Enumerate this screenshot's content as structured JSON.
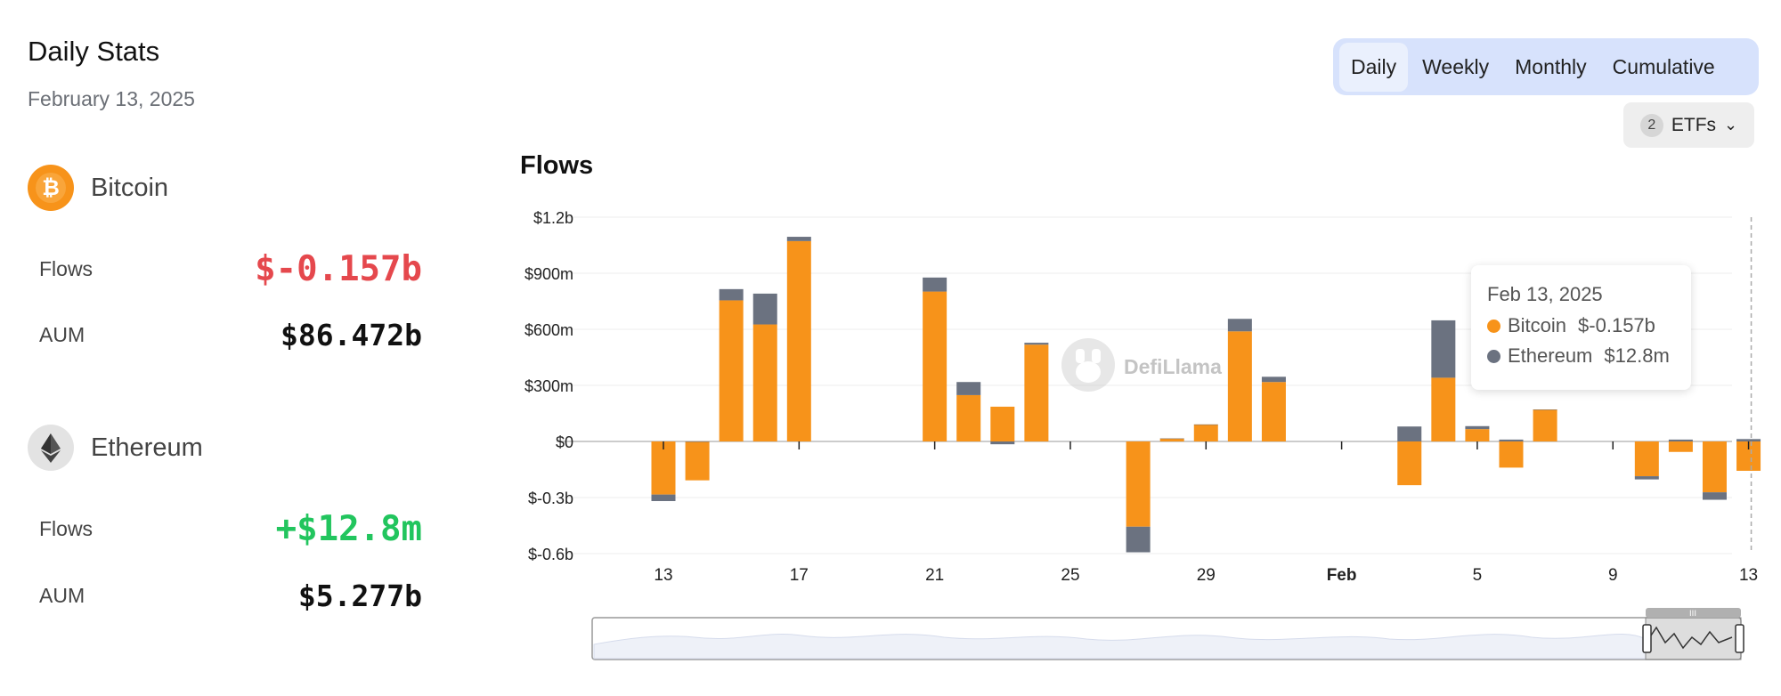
{
  "header": {
    "title": "Daily Stats",
    "date": "February 13, 2025"
  },
  "assets": [
    {
      "name": "Bitcoin",
      "icon": "bitcoin-icon",
      "color": "#f7931a",
      "flows_label": "Flows",
      "flows_value": "$-0.157b",
      "aum_label": "AUM",
      "aum_value": "$86.472b"
    },
    {
      "name": "Ethereum",
      "icon": "ethereum-icon",
      "color": "#e3e3e3",
      "flows_label": "Flows",
      "flows_value": "+$12.8m",
      "aum_label": "AUM",
      "aum_value": "$5.277b"
    }
  ],
  "tabs": [
    {
      "label": "Daily",
      "active": true
    },
    {
      "label": "Weekly",
      "active": false
    },
    {
      "label": "Monthly",
      "active": false
    },
    {
      "label": "Cumulative",
      "active": false
    }
  ],
  "etf_filter": {
    "count": "2",
    "label": "ETFs"
  },
  "watermark": "DefiLlama",
  "tooltip": {
    "date": "Feb 13, 2025",
    "rows": [
      {
        "name": "Bitcoin",
        "value": "$-0.157b",
        "color": "#f7931a"
      },
      {
        "name": "Ethereum",
        "value": "$12.8m",
        "color": "#6b7280"
      }
    ]
  },
  "chart_data": {
    "type": "bar",
    "title": "Flows",
    "stacked": true,
    "colors": {
      "Bitcoin": "#f7931a",
      "Ethereum": "#6b7280"
    },
    "ylim": [
      -0.6,
      1.2
    ],
    "y_ticks": [
      {
        "value": 1.2,
        "label": "$1.2b"
      },
      {
        "value": 0.9,
        "label": "$900m"
      },
      {
        "value": 0.6,
        "label": "$600m"
      },
      {
        "value": 0.3,
        "label": "$300m"
      },
      {
        "value": 0,
        "label": "$0"
      },
      {
        "value": -0.3,
        "label": "$-0.3b"
      },
      {
        "value": -0.6,
        "label": "$-0.6b"
      }
    ],
    "x_ticks": [
      {
        "day": 13,
        "label": "13",
        "bold": false
      },
      {
        "day": 17,
        "label": "17",
        "bold": false
      },
      {
        "day": 21,
        "label": "21",
        "bold": false
      },
      {
        "day": 25,
        "label": "25",
        "bold": false
      },
      {
        "day": 29,
        "label": "29",
        "bold": false
      },
      {
        "day": 33,
        "label": "Feb",
        "bold": true
      },
      {
        "day": 37,
        "label": "5",
        "bold": false
      },
      {
        "day": 41,
        "label": "9",
        "bold": false
      },
      {
        "day": 45,
        "label": "13",
        "bold": false
      }
    ],
    "x_unit": "days since Jan 0, 2025",
    "bars": [
      {
        "day": 13,
        "btc": -0.284,
        "eth": -0.035
      },
      {
        "day": 14,
        "btc": -0.208,
        "eth": 0
      },
      {
        "day": 15,
        "btc": 0.755,
        "eth": 0.06
      },
      {
        "day": 16,
        "btc": 0.626,
        "eth": 0.165
      },
      {
        "day": 17,
        "btc": 1.072,
        "eth": 0.023
      },
      {
        "day": 21,
        "btc": 0.802,
        "eth": 0.075
      },
      {
        "day": 22,
        "btc": 0.248,
        "eth": 0.07
      },
      {
        "day": 23,
        "btc": 0.186,
        "eth": -0.015
      },
      {
        "day": 24,
        "btc": 0.518,
        "eth": 0.01
      },
      {
        "day": 27,
        "btc": -0.456,
        "eth": -0.137
      },
      {
        "day": 28,
        "btc": 0.016,
        "eth": 0
      },
      {
        "day": 29,
        "btc": 0.091,
        "eth": 0
      },
      {
        "day": 30,
        "btc": 0.589,
        "eth": 0.067
      },
      {
        "day": 31,
        "btc": 0.318,
        "eth": 0.028
      },
      {
        "day": 35,
        "btc": -0.234,
        "eth": 0.08
      },
      {
        "day": 36,
        "btc": 0.341,
        "eth": 0.307
      },
      {
        "day": 37,
        "btc": 0.066,
        "eth": 0.016
      },
      {
        "day": 38,
        "btc": -0.14,
        "eth": 0.01
      },
      {
        "day": 39,
        "btc": 0.171,
        "eth": 0
      },
      {
        "day": 42,
        "btc": -0.186,
        "eth": -0.017
      },
      {
        "day": 43,
        "btc": -0.056,
        "eth": 0.01
      },
      {
        "day": 44,
        "btc": -0.272,
        "eth": -0.04
      },
      {
        "day": 45,
        "btc": -0.157,
        "eth": 0.0128
      }
    ]
  }
}
